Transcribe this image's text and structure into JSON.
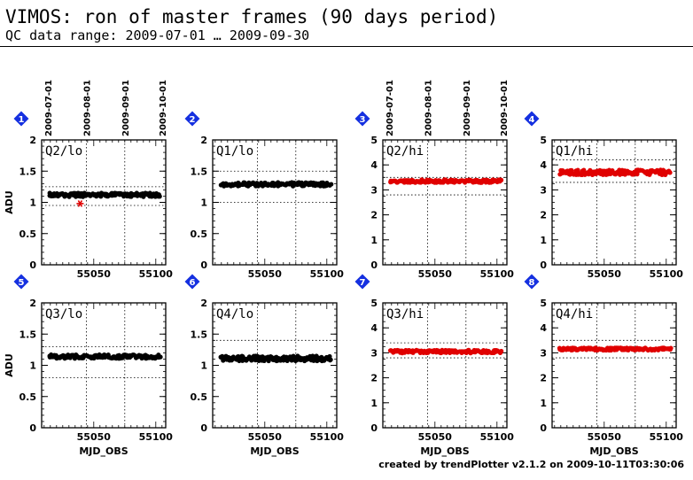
{
  "header": {
    "title": "VIMOS: ron of master frames (90 days period)",
    "subtitle": "QC data range: 2009-07-01 … 2009-09-30"
  },
  "footer": "created by trendPlotter v2.1.2 on 2009-10-11T03:30:06",
  "colors": {
    "black_marker": "#000000",
    "red_marker": "#e00000",
    "badge": "#1530e0",
    "grid": "#000000"
  },
  "chart_data": [
    {
      "type": "scatter",
      "badge": "1",
      "label": "Q2/lo",
      "ylim": [
        0,
        2
      ],
      "yticks": [
        "0",
        "0.5",
        "1",
        "1.5",
        "2"
      ],
      "ylabel": "ADU",
      "xlabel": "",
      "xlim": [
        55008,
        55108
      ],
      "xtick_labels": [
        "55050",
        "55100"
      ],
      "date_ticks": [
        "2009-07-01",
        "2009-08-01",
        "2009-09-01",
        "2009-10-01"
      ],
      "ref_lines": [
        0.95,
        1.25
      ],
      "marker_color": "#000000",
      "mean": 1.12,
      "spread": 0.03,
      "outliers": [
        {
          "x": 55039,
          "y": 0.98,
          "color": "#e00000"
        }
      ]
    },
    {
      "type": "scatter",
      "badge": "2",
      "label": "Q1/lo",
      "ylim": [
        0,
        2
      ],
      "yticks": [
        "0",
        "0.5",
        "1",
        "1.5",
        "2"
      ],
      "ylabel": "",
      "xlabel": "",
      "xlim": [
        55008,
        55108
      ],
      "xtick_labels": [
        "55050",
        "55100"
      ],
      "date_ticks": [],
      "ref_lines": [
        1.0,
        1.5
      ],
      "marker_color": "#000000",
      "mean": 1.29,
      "spread": 0.03,
      "outliers": []
    },
    {
      "type": "scatter",
      "badge": "3",
      "label": "Q2/hi",
      "ylim": [
        0,
        5
      ],
      "yticks": [
        "0",
        "1",
        "2",
        "3",
        "4",
        "5"
      ],
      "ylabel": "",
      "xlabel": "",
      "xlim": [
        55008,
        55108
      ],
      "xtick_labels": [
        "55050",
        "55100"
      ],
      "date_ticks": [
        "2009-07-01",
        "2009-08-01",
        "2009-09-01",
        "2009-10-01"
      ],
      "ref_lines": [
        2.8,
        3.5
      ],
      "marker_color": "#e00000",
      "mean": 3.35,
      "spread": 0.06,
      "outliers": []
    },
    {
      "type": "scatter",
      "badge": "4",
      "label": "Q1/hi",
      "ylim": [
        0,
        5
      ],
      "yticks": [
        "0",
        "1",
        "2",
        "3",
        "4",
        "5"
      ],
      "ylabel": "",
      "xlabel": "",
      "xlim": [
        55008,
        55108
      ],
      "xtick_labels": [
        "55050",
        "55100"
      ],
      "date_ticks": [],
      "ref_lines": [
        3.3,
        4.2
      ],
      "marker_color": "#e00000",
      "mean": 3.7,
      "spread": 0.1,
      "outliers": []
    },
    {
      "type": "scatter",
      "badge": "5",
      "label": "Q3/lo",
      "ylim": [
        0,
        2
      ],
      "yticks": [
        "0",
        "0.5",
        "1",
        "1.5",
        "2"
      ],
      "ylabel": "ADU",
      "xlabel": "MJD_OBS",
      "xlim": [
        55008,
        55108
      ],
      "xtick_labels": [
        "55050",
        "55100"
      ],
      "date_ticks": [],
      "ref_lines": [
        0.8,
        1.3
      ],
      "marker_color": "#000000",
      "mean": 1.14,
      "spread": 0.03,
      "outliers": []
    },
    {
      "type": "scatter",
      "badge": "6",
      "label": "Q4/lo",
      "ylim": [
        0,
        2
      ],
      "yticks": [
        "0",
        "0.5",
        "1",
        "1.5",
        "2"
      ],
      "ylabel": "",
      "xlabel": "MJD_OBS",
      "xlim": [
        55008,
        55108
      ],
      "xtick_labels": [
        "55050",
        "55100"
      ],
      "date_ticks": [],
      "ref_lines": [
        1.4
      ],
      "marker_color": "#000000",
      "mean": 1.11,
      "spread": 0.04,
      "outliers": []
    },
    {
      "type": "scatter",
      "badge": "7",
      "label": "Q3/hi",
      "ylim": [
        0,
        5
      ],
      "yticks": [
        "0",
        "1",
        "2",
        "3",
        "4",
        "5"
      ],
      "ylabel": "",
      "xlabel": "MJD_OBS",
      "xlim": [
        55008,
        55108
      ],
      "xtick_labels": [
        "55050",
        "55100"
      ],
      "date_ticks": [],
      "ref_lines": [
        2.8,
        3.4
      ],
      "marker_color": "#e00000",
      "mean": 3.05,
      "spread": 0.06,
      "outliers": []
    },
    {
      "type": "scatter",
      "badge": "8",
      "label": "Q4/hi",
      "ylim": [
        0,
        5
      ],
      "yticks": [
        "0",
        "1",
        "2",
        "3",
        "4",
        "5"
      ],
      "ylabel": "",
      "xlabel": "MJD_OBS",
      "xlim": [
        55008,
        55108
      ],
      "xtick_labels": [
        "55050",
        "55100"
      ],
      "date_ticks": [],
      "ref_lines": [
        2.8,
        3.5
      ],
      "marker_color": "#e00000",
      "mean": 3.15,
      "spread": 0.05,
      "outliers": []
    }
  ]
}
